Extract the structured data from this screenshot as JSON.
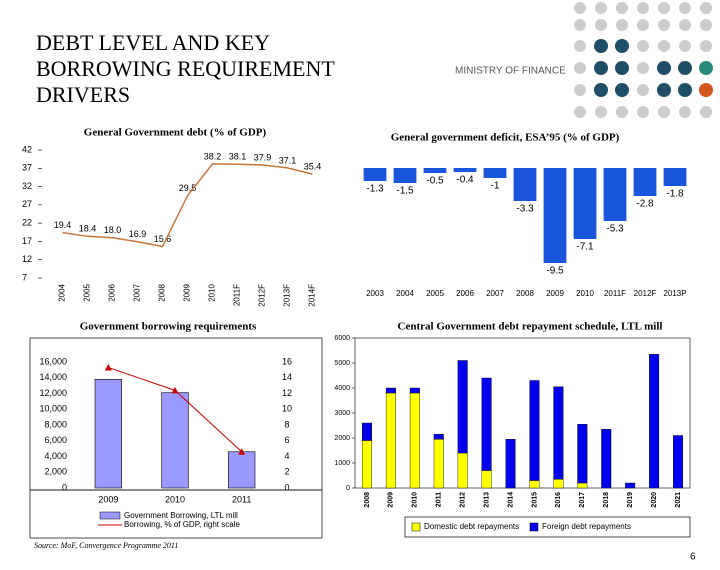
{
  "title": [
    "DEBT LEVEL AND KEY",
    "BORROWING REQUIREMENT",
    "DRIVERS"
  ],
  "logo": "MINISTRY OF FINANCE",
  "source": "Source: MoF, Convergence Programme 2011",
  "page": "6",
  "chart_data": [
    {
      "type": "line",
      "title": "General Government debt (% of GDP)",
      "categories": [
        "2004",
        "2005",
        "2006",
        "2007",
        "2008",
        "2009",
        "2010",
        "2011F",
        "2012F",
        "2013F",
        "2014F"
      ],
      "values": [
        19.4,
        18.4,
        18.0,
        16.9,
        15.6,
        29.5,
        38.2,
        38.1,
        37.9,
        37.1,
        35.4
      ],
      "value_labels": [
        "19.4",
        "18.4",
        "18.0",
        "16.9",
        "15.6",
        "29.5",
        "38.2",
        "38.1",
        "37.9",
        "37.1",
        "35.4"
      ],
      "color": "#c8763a",
      "ylim": [
        7,
        42
      ],
      "yticks": [
        7,
        12,
        17,
        22,
        27,
        32,
        37,
        42
      ]
    },
    {
      "type": "bar",
      "title": "General government deficit, ESA’95 (% of GDP)",
      "categories": [
        "2003",
        "2004",
        "2005",
        "2006",
        "2007",
        "2008",
        "2009",
        "2010",
        "2011F",
        "2012F",
        "2013P"
      ],
      "values": [
        -1.3,
        -1.5,
        -0.5,
        -0.4,
        -1.0,
        -3.3,
        -9.5,
        -7.1,
        -5.3,
        -2.8,
        -1.8
      ],
      "color": "#1a56db",
      "ylim": [
        -10,
        0
      ]
    },
    {
      "type": "bar_line",
      "title": "Government borrowing requirements",
      "categories": [
        "2009",
        "2010",
        "2011"
      ],
      "series": [
        {
          "name": "Government Borrowing, LTL mill",
          "color": "#9999ff",
          "values": [
            13800,
            12100,
            4600
          ]
        },
        {
          "name": "Borrowing, % of GDP, right scale",
          "color": "#cc0000",
          "axis": "y2",
          "values": [
            15.3,
            12.4,
            4.6
          ]
        }
      ],
      "ylim": [
        0,
        16000
      ],
      "yticks": [
        0,
        {
          "value": 2000,
          "label": "2,000"
        },
        {
          "value": 4000,
          "label": "4,000"
        },
        {
          "value": 6000,
          "label": "6,000"
        },
        {
          "value": 8000,
          "label": "8,000"
        },
        {
          "value": 10000,
          "label": "10,000"
        },
        {
          "value": 12000,
          "label": "12,000"
        },
        {
          "value": 14000,
          "label": "14,000"
        },
        {
          "value": 16000,
          "label": "16,000"
        }
      ],
      "y2lim": [
        0,
        16
      ],
      "y2ticks": [
        0,
        2,
        4,
        6,
        8,
        10,
        12,
        14,
        16
      ]
    },
    {
      "type": "stacked_bar",
      "title": "Central Government debt repayment schedule, LTL mill",
      "categories": [
        "2008",
        "2009",
        "2010",
        "2011",
        "2012",
        "2013",
        "2014",
        "2015",
        "2016",
        "2017",
        "2018",
        "2019",
        "2020",
        "2021"
      ],
      "series": [
        {
          "name": "Domestic debt repayments",
          "color": "#ffff00",
          "values": [
            1900,
            3800,
            3800,
            1950,
            1400,
            700,
            0,
            300,
            350,
            200,
            0,
            0,
            0,
            0
          ]
        },
        {
          "name": "Foreign debt repayments",
          "color": "#0000ee",
          "values": [
            700,
            200,
            200,
            200,
            3700,
            3700,
            1950,
            4000,
            3700,
            2350,
            2350,
            200,
            5350,
            2100
          ]
        }
      ],
      "ylim": [
        0,
        6000
      ],
      "yticks": [
        0,
        1000,
        2000,
        3000,
        4000,
        5000,
        6000
      ]
    }
  ]
}
